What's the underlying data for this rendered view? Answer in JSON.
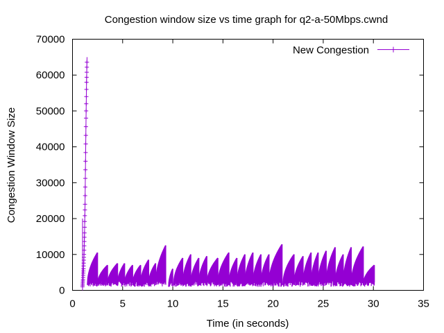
{
  "chart_data": {
    "type": "line",
    "title": "Congestion window size vs time graph for q2-a-50Mbps.cwnd",
    "xlabel": "Time (in seconds)",
    "ylabel": "Congestion Window Size",
    "xlim": [
      0,
      35
    ],
    "ylim": [
      0,
      70000
    ],
    "x_ticks": [
      0,
      5,
      10,
      15,
      20,
      25,
      30,
      35
    ],
    "y_ticks": [
      0,
      10000,
      20000,
      30000,
      40000,
      50000,
      60000,
      70000
    ],
    "grid": false,
    "legend_position": "top-right",
    "series": [
      {
        "name": "New Congestion",
        "color": "#9400d3",
        "marker": "plus",
        "slow_start": [
          [
            1.0,
            1000
          ],
          [
            1.05,
            3000
          ],
          [
            1.1,
            6000
          ],
          [
            1.15,
            10000
          ],
          [
            1.2,
            16000
          ],
          [
            1.25,
            24000
          ],
          [
            1.3,
            36000
          ],
          [
            1.35,
            48000
          ],
          [
            1.4,
            58000
          ],
          [
            1.45,
            65000
          ]
        ],
        "sawtooth_cycles": [
          [
            1.5,
            2.5,
            1500,
            10500
          ],
          [
            2.5,
            3.5,
            1500,
            7000
          ],
          [
            3.5,
            4.5,
            1500,
            7500
          ],
          [
            4.5,
            5.2,
            1500,
            7500
          ],
          [
            5.2,
            6.0,
            1500,
            7000
          ],
          [
            6.0,
            6.8,
            1500,
            7000
          ],
          [
            6.8,
            7.6,
            1500,
            8500
          ],
          [
            7.6,
            8.3,
            1500,
            7500
          ],
          [
            8.3,
            9.3,
            1500,
            12500
          ],
          [
            9.6,
            10.0,
            1000,
            6000
          ],
          [
            10.1,
            11.0,
            1500,
            9000
          ],
          [
            11.0,
            11.8,
            1500,
            10000
          ],
          [
            11.8,
            12.6,
            1500,
            9000
          ],
          [
            12.6,
            13.4,
            1500,
            9500
          ],
          [
            13.4,
            14.5,
            1500,
            9000
          ],
          [
            14.5,
            15.6,
            1500,
            10500
          ],
          [
            15.6,
            16.4,
            1500,
            9000
          ],
          [
            16.4,
            17.2,
            1500,
            10000
          ],
          [
            17.2,
            18.0,
            1500,
            10500
          ],
          [
            18.0,
            18.8,
            1500,
            10000
          ],
          [
            18.8,
            19.6,
            1500,
            10000
          ],
          [
            19.6,
            20.9,
            1500,
            12800
          ],
          [
            21.0,
            22.1,
            1500,
            10000
          ],
          [
            22.1,
            23.0,
            1500,
            9500
          ],
          [
            23.0,
            23.8,
            1500,
            10500
          ],
          [
            23.8,
            24.5,
            1500,
            10500
          ],
          [
            24.5,
            25.3,
            1500,
            11000
          ],
          [
            25.3,
            26.2,
            1500,
            12000
          ],
          [
            26.2,
            27.0,
            1500,
            10000
          ],
          [
            27.0,
            27.8,
            1500,
            12000
          ],
          [
            27.8,
            29.0,
            1500,
            12200
          ],
          [
            29.0,
            30.1,
            1500,
            7000
          ]
        ]
      }
    ]
  }
}
